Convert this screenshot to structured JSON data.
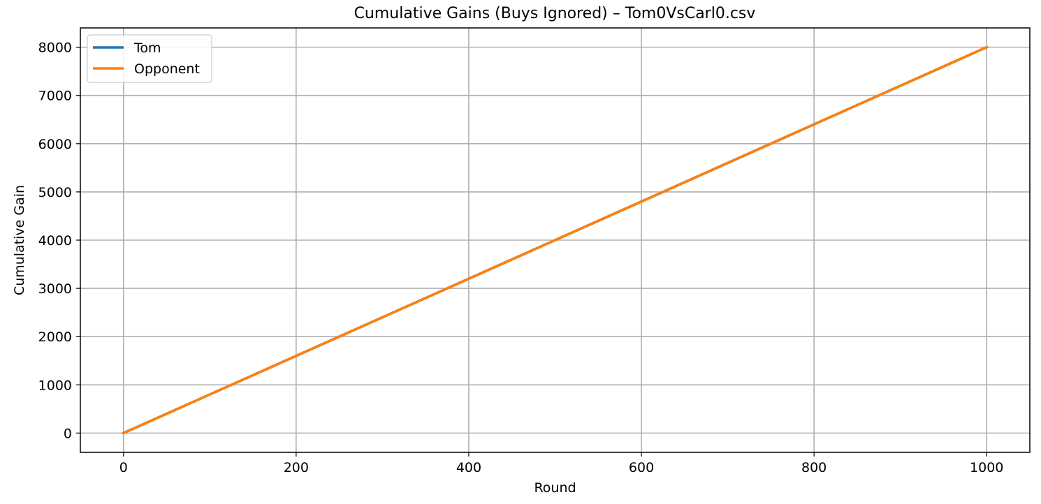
{
  "chart_data": {
    "type": "line",
    "title": "Cumulative Gains (Buys Ignored) – Tom0VsCarl0.csv",
    "xlabel": "Round",
    "ylabel": "Cumulative Gain",
    "xlim": [
      -50,
      1050
    ],
    "ylim": [
      -400,
      8400
    ],
    "xticks": [
      0,
      200,
      400,
      600,
      800,
      1000
    ],
    "yticks": [
      0,
      1000,
      2000,
      3000,
      4000,
      5000,
      6000,
      7000,
      8000
    ],
    "grid": true,
    "legend_position": "top-left",
    "series": [
      {
        "name": "Tom",
        "color": "#1f77b4",
        "x": [
          0,
          1000
        ],
        "y": [
          0,
          8000
        ]
      },
      {
        "name": "Opponent",
        "color": "#ff7f0e",
        "x": [
          0,
          1000
        ],
        "y": [
          0,
          8000
        ]
      }
    ]
  }
}
